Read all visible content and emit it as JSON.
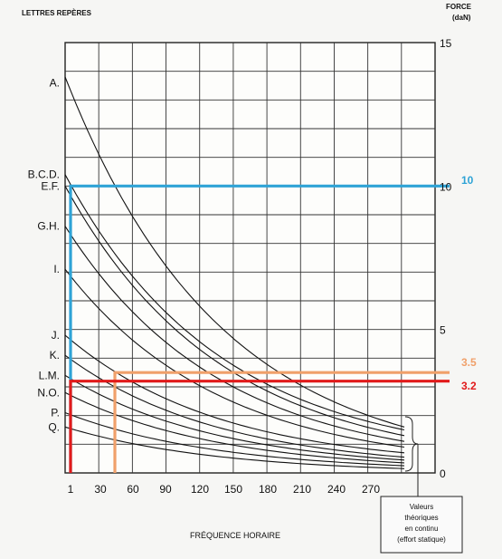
{
  "chart_data": {
    "type": "line",
    "left_axis_title": "LETTRES REPÈRES",
    "right_axis_title_line1": "FORCE",
    "right_axis_title_line2": "(daN)",
    "xlabel": "FRÉQUENCE HORAIRE",
    "x_ticks": [
      "1",
      "30",
      "60",
      "90",
      "120",
      "150",
      "180",
      "210",
      "240",
      "270"
    ],
    "x_tick_values": [
      1,
      30,
      60,
      90,
      120,
      150,
      180,
      210,
      240,
      270
    ],
    "xlim": [
      0,
      330
    ],
    "ylim": [
      0,
      15
    ],
    "y_ticks": [
      {
        "value": 15,
        "label": "15"
      },
      {
        "value": 10,
        "label": "10"
      },
      {
        "value": 5,
        "label": "5"
      },
      {
        "value": 0,
        "label": "0"
      }
    ],
    "letters": [
      {
        "label": "A.",
        "value": 13.6
      },
      {
        "label": "B.C.D.",
        "value": 10.4
      },
      {
        "label": "E.F.",
        "value": 10.0
      },
      {
        "label": "G.H.",
        "value": 8.6
      },
      {
        "label": "I.",
        "value": 7.1
      },
      {
        "label": "J.",
        "value": 4.8
      },
      {
        "label": "K.",
        "value": 4.1
      },
      {
        "label": "L.M.",
        "value": 3.4
      },
      {
        "label": "N.O.",
        "value": 2.8
      },
      {
        "label": "P.",
        "value": 2.1
      },
      {
        "label": "Q.",
        "value": 1.6
      }
    ],
    "curves": [
      {
        "start": 13.8,
        "end": 1.6
      },
      {
        "start": 10.4,
        "end": 1.5
      },
      {
        "start": 10.0,
        "end": 1.3
      },
      {
        "start": 8.6,
        "end": 1.1
      },
      {
        "start": 7.1,
        "end": 0.9
      },
      {
        "start": 4.8,
        "end": 0.7
      },
      {
        "start": 4.1,
        "end": 0.55
      },
      {
        "start": 3.4,
        "end": 0.45
      },
      {
        "start": 2.8,
        "end": 0.35
      },
      {
        "start": 2.1,
        "end": 0.25
      },
      {
        "start": 1.6,
        "end": 0.15
      }
    ],
    "highlights": [
      {
        "value": 10,
        "label": "10",
        "x_start": 1,
        "color": "#2ea3d6"
      },
      {
        "value": 3.5,
        "label": "3.5",
        "x_start": 45,
        "color": "#f0a06a"
      },
      {
        "value": 3.2,
        "label": "3.2",
        "x_start": 1,
        "color": "#e11a1a"
      }
    ],
    "continuous_note": [
      "Valeurs",
      "théoriques",
      "en continu",
      "(effort statique)"
    ]
  }
}
